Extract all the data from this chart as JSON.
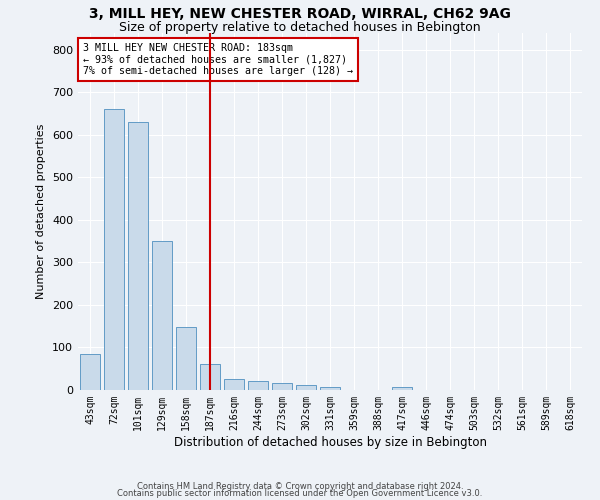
{
  "title1": "3, MILL HEY, NEW CHESTER ROAD, WIRRAL, CH62 9AG",
  "title2": "Size of property relative to detached houses in Bebington",
  "xlabel": "Distribution of detached houses by size in Bebington",
  "ylabel": "Number of detached properties",
  "categories": [
    "43sqm",
    "72sqm",
    "101sqm",
    "129sqm",
    "158sqm",
    "187sqm",
    "216sqm",
    "244sqm",
    "273sqm",
    "302sqm",
    "331sqm",
    "359sqm",
    "388sqm",
    "417sqm",
    "446sqm",
    "474sqm",
    "503sqm",
    "532sqm",
    "561sqm",
    "589sqm",
    "618sqm"
  ],
  "values": [
    85,
    660,
    630,
    350,
    148,
    60,
    25,
    20,
    17,
    12,
    7,
    0,
    0,
    8,
    0,
    0,
    0,
    0,
    0,
    0,
    0
  ],
  "bar_color": "#c9daea",
  "bar_edge_color": "#4e8fc0",
  "property_index": 5,
  "red_line_color": "#cc0000",
  "annotation_text": "3 MILL HEY NEW CHESTER ROAD: 183sqm\n← 93% of detached houses are smaller (1,827)\n7% of semi-detached houses are larger (128) →",
  "annotation_box_color": "#cc0000",
  "ylim": [
    0,
    840
  ],
  "yticks": [
    0,
    100,
    200,
    300,
    400,
    500,
    600,
    700,
    800
  ],
  "footer1": "Contains HM Land Registry data © Crown copyright and database right 2024.",
  "footer2": "Contains public sector information licensed under the Open Government Licence v3.0.",
  "bg_color": "#eef2f7",
  "grid_color": "#ffffff",
  "title1_fontsize": 10,
  "title2_fontsize": 9
}
